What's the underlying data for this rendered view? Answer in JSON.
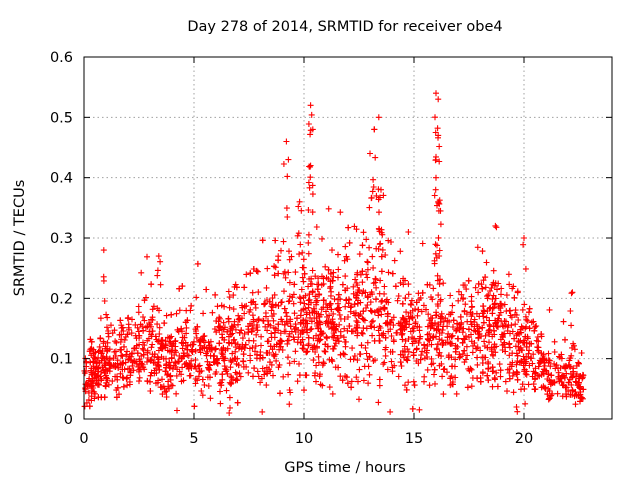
{
  "chart_data": {
    "type": "scatter",
    "title": "Day 278 of 2014, SRMTID for receiver obe4",
    "xlabel": "GPS time / hours",
    "ylabel": "SRMTID / TECUs",
    "xlim": [
      0,
      24
    ],
    "ylim": [
      0,
      0.6
    ],
    "grid": true,
    "marker": "+",
    "color": "#ff0000",
    "x_ticks": [
      0,
      5,
      10,
      15,
      20
    ],
    "x_tick_labels": [
      "0",
      "5",
      "10",
      "15",
      "20"
    ],
    "y_ticks": [
      0,
      0.1,
      0.2,
      0.3,
      0.4,
      0.5,
      0.6
    ],
    "y_tick_labels": [
      "0",
      "0.1",
      "0.2",
      "0.3",
      "0.4",
      "0.5",
      "0.6"
    ],
    "series": [
      {
        "name": "SRMTID",
        "trend": [
          [
            0,
            0.06
          ],
          [
            1,
            0.09
          ],
          [
            2,
            0.11
          ],
          [
            3,
            0.12
          ],
          [
            4,
            0.1
          ],
          [
            5,
            0.11
          ],
          [
            6,
            0.12
          ],
          [
            7,
            0.13
          ],
          [
            8,
            0.15
          ],
          [
            9,
            0.16
          ],
          [
            10,
            0.15
          ],
          [
            11,
            0.16
          ],
          [
            12,
            0.17
          ],
          [
            13,
            0.17
          ],
          [
            14,
            0.16
          ],
          [
            15,
            0.15
          ],
          [
            16,
            0.13
          ],
          [
            17,
            0.14
          ],
          [
            18,
            0.15
          ],
          [
            19,
            0.14
          ],
          [
            20,
            0.12
          ],
          [
            21,
            0.08
          ],
          [
            22,
            0.07
          ],
          [
            22.7,
            0.05
          ]
        ],
        "peaks": [
          {
            "x": 0.9,
            "y": 0.28
          },
          {
            "x": 3.4,
            "y": 0.27
          },
          {
            "x": 9.2,
            "y": 0.46
          },
          {
            "x": 9.8,
            "y": 0.36
          },
          {
            "x": 10.3,
            "y": 0.52
          },
          {
            "x": 10.4,
            "y": 0.48
          },
          {
            "x": 10.3,
            "y": 0.42
          },
          {
            "x": 13.2,
            "y": 0.48
          },
          {
            "x": 13.4,
            "y": 0.5
          },
          {
            "x": 13.0,
            "y": 0.44
          },
          {
            "x": 13.5,
            "y": 0.38
          },
          {
            "x": 16.0,
            "y": 0.54
          },
          {
            "x": 16.1,
            "y": 0.53
          },
          {
            "x": 16.1,
            "y": 0.47
          },
          {
            "x": 16.0,
            "y": 0.4
          },
          {
            "x": 16.1,
            "y": 0.36
          },
          {
            "x": 18.7,
            "y": 0.32
          },
          {
            "x": 20.0,
            "y": 0.3
          },
          {
            "x": 22.2,
            "y": 0.21
          },
          {
            "x": 6.6,
            "y": 0.01
          }
        ]
      }
    ]
  }
}
